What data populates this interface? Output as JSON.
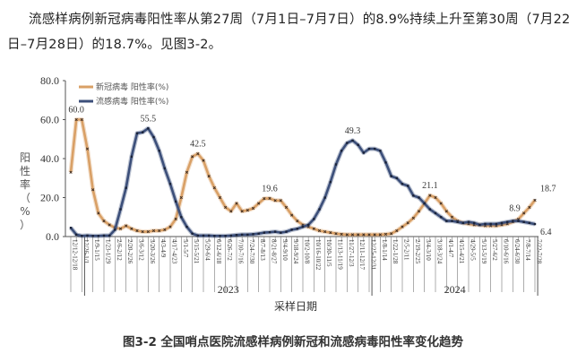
{
  "paragraph": "流感样病例新冠病毒阳性率从第27周（7月1日–7月7日）的8.9%持续上升至第30周（7月22日–7月28日）的18.7%。见图3-2。",
  "caption": "图3-2 全国哨点医院流感样病例新冠和流感病毒阳性率变化趋势",
  "chart_data": {
    "type": "line",
    "title": "",
    "xlabel": "采样日期",
    "ylabel": "阳性率（%）",
    "ylim": [
      0,
      80
    ],
    "yticks": [
      "0.0",
      "20.0",
      "40.0",
      "60.0",
      "80.0"
    ],
    "grid": false,
    "legend_position": "top-left",
    "year_labels": [
      "2023",
      "2024"
    ],
    "x_tick_labels": [
      "12/12-12/18",
      "12/26-1/1",
      "1/9-1/15",
      "1/23-1/29",
      "2/6-2/12",
      "2/20-2/26",
      "3/6-3/12",
      "3/20-3/26",
      "4/3-4/9",
      "4/17-4/23",
      "5/1-5/7",
      "5/15-5/21",
      "5/29-6/4",
      "6/12-6/18",
      "6/26-7/2",
      "7/10-7/16",
      "7/24-7/30",
      "8/7-8/13",
      "8/21-8/27",
      "9/4-9/10",
      "9/18-9/24",
      "10/2-10/8",
      "10/16-10/22",
      "10/30-11/5",
      "11/13-11/19",
      "11/27-12/3",
      "12/11-12/17",
      "12/25-12/31",
      "1/8-1/14",
      "1/22-1/28",
      "2/5-2/11",
      "2/19-2/25",
      "3/4-3/10",
      "3/18-3/24",
      "4/1-4/7",
      "4/15-4/21",
      "4/29-5/5",
      "5/13-5/19",
      "5/27-6/2",
      "6/10-6/16",
      "6/24-6/30",
      "7/8-7/14",
      "7/22-7/28"
    ],
    "series": [
      {
        "name": "新冠病毒 阳性率(%)",
        "color": "#d9a066",
        "values": [
          33,
          60,
          60,
          45,
          24,
          12,
          8,
          6,
          4.5,
          4,
          5.5,
          4,
          3,
          2.5,
          2.5,
          3,
          3,
          3.5,
          5,
          9,
          20,
          33,
          41,
          42.5,
          39,
          31,
          25,
          20,
          15,
          13,
          17,
          13,
          13.5,
          14.5,
          17,
          19.5,
          19.6,
          18.5,
          18.5,
          15,
          11,
          8,
          6,
          5,
          4,
          3,
          2.5,
          2,
          1.5,
          1.2,
          1,
          1,
          1,
          1,
          1,
          1,
          1,
          1.2,
          1.5,
          3,
          5,
          7,
          9.5,
          13,
          17,
          21.1,
          20,
          17,
          13,
          10,
          8,
          7,
          6.5,
          6,
          6,
          5.5,
          5.5,
          5.5,
          6,
          6.5,
          7.5,
          8.9,
          12,
          15,
          18.7
        ],
        "labels": [
          {
            "index": 1,
            "text": "60.0"
          },
          {
            "index": 23,
            "text": "42.5"
          },
          {
            "index": 36,
            "text": "19.6"
          },
          {
            "index": 65,
            "text": "21.1"
          },
          {
            "index": 81,
            "text": "8.9"
          },
          {
            "index": 84,
            "text": "18.7"
          }
        ]
      },
      {
        "name": "流感病毒 阳性率(%)",
        "color": "#3c4f7a",
        "values": [
          4.5,
          1,
          0.3,
          0.5,
          0.3,
          0.3,
          0.5,
          0.5,
          3.5,
          14,
          25,
          41,
          53,
          53.5,
          55.5,
          51,
          44,
          35,
          27,
          18,
          10,
          5,
          1.5,
          0.5,
          0.5,
          0.5,
          0.3,
          0.3,
          0.3,
          0.5,
          0.8,
          1,
          1,
          1.2,
          1.5,
          2,
          2.2,
          2.5,
          2,
          2.5,
          3.5,
          4,
          5,
          6,
          9,
          14,
          20,
          28,
          37,
          44,
          48,
          49.3,
          47,
          43,
          45,
          45,
          44,
          38,
          31,
          30,
          27,
          26,
          21,
          20,
          17,
          14,
          12,
          10,
          8,
          8,
          7.5,
          7,
          7.5,
          7,
          6,
          6.5,
          6.5,
          6.5,
          7,
          7.5,
          8,
          8,
          7.5,
          7,
          6.4
        ],
        "labels": [
          {
            "index": 14,
            "text": "55.5"
          },
          {
            "index": 51,
            "text": "49.3"
          },
          {
            "index": 84,
            "text": "6.4"
          }
        ]
      }
    ]
  }
}
